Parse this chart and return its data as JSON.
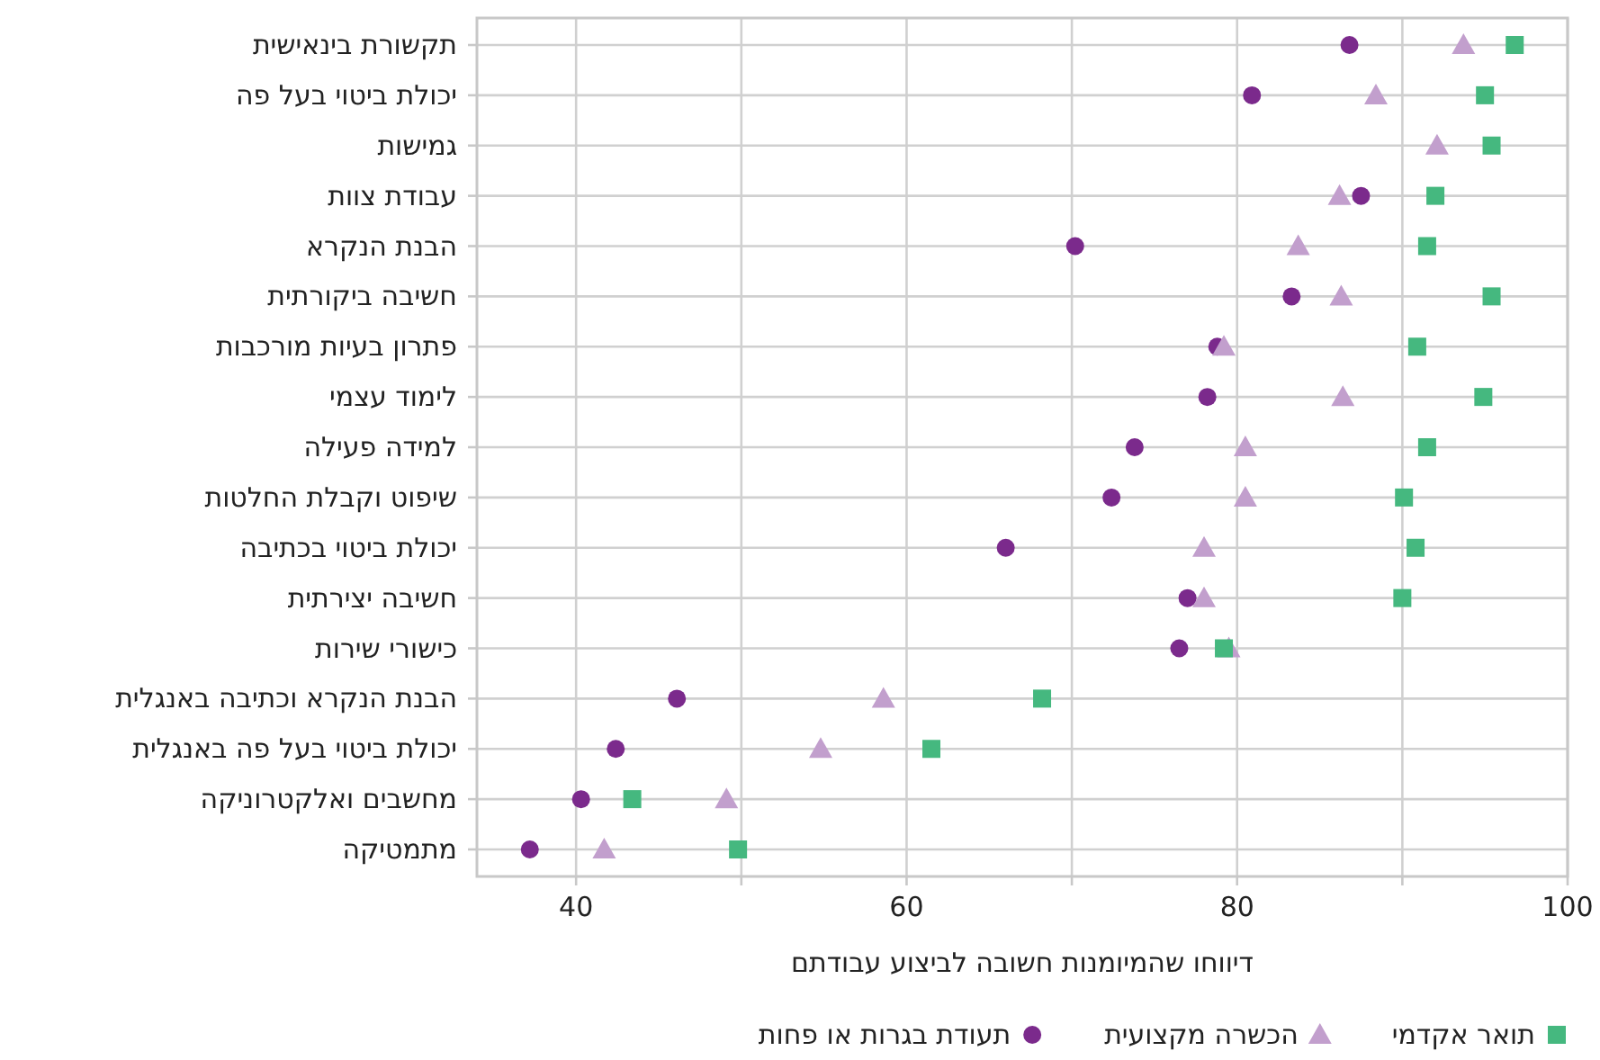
{
  "chart_data": {
    "type": "scatter",
    "xlabel": "דיווחו שהמיומנות חשובה לביצוע עבודתם",
    "categories": [
      "תקשורת בינאישית",
      "יכולת ביטוי בעל פה",
      "גמישות",
      "עבודת צוות",
      "הבנת הנקרא",
      "חשיבה ביקורתית",
      "פתרון בעיות מורכבות",
      "לימוד עצמי",
      "למידה פעילה",
      "שיפוט וקבלת החלטות",
      "יכולת ביטוי בכתיבה",
      "חשיבה יצירתית",
      "כישורי שירות",
      "הבנת הנקרא וכתיבה באנגלית",
      "יכולת ביטוי בעל פה באנגלית",
      "מחשבים ואלקטרוניקה",
      "מתמטיקה"
    ],
    "orientation": "horizontal",
    "xlim": [
      34,
      100
    ],
    "xticks": [
      40,
      {
        "value": 50,
        "label": null
      },
      60,
      {
        "value": 70,
        "label": null
      },
      80,
      {
        "value": 90,
        "label": null
      },
      100
    ],
    "grid": true,
    "legend": "bottom",
    "series": [
      {
        "name": "תואר אקדמי",
        "color": "#45b87f",
        "marker": "square",
        "values": [
          96.8,
          95.0,
          95.4,
          92.0,
          91.5,
          95.4,
          90.9,
          94.9,
          91.5,
          90.1,
          90.8,
          90.0,
          79.2,
          68.2,
          61.5,
          43.4,
          49.8
        ]
      },
      {
        "name": "הכשרה מקצועית",
        "color": "#c29fcd",
        "marker": "triangle",
        "values": [
          93.7,
          88.4,
          92.1,
          86.2,
          83.7,
          86.3,
          79.2,
          86.4,
          80.5,
          80.5,
          78.0,
          78.0,
          79.5,
          58.6,
          54.8,
          49.1,
          41.7
        ]
      },
      {
        "name": "תעודת בגרות או פחות",
        "color": "#7b2a8c",
        "marker": "circle",
        "values": [
          86.8,
          80.9,
          null,
          87.5,
          70.2,
          83.3,
          78.8,
          78.2,
          73.8,
          72.4,
          66.0,
          77.0,
          76.5,
          46.1,
          42.4,
          40.3,
          37.2
        ]
      }
    ]
  }
}
